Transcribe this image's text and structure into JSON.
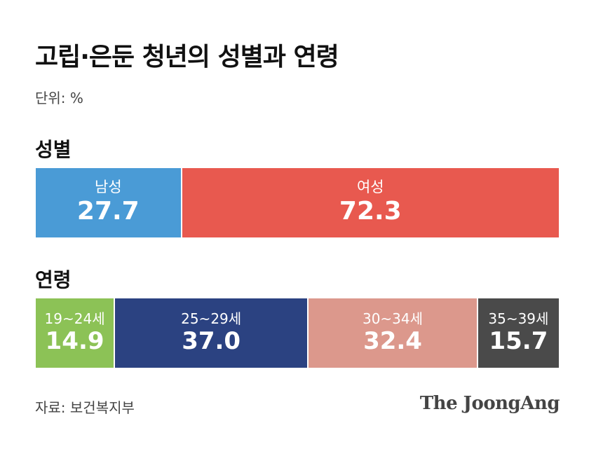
{
  "title": "고립·은둔 청년의 성별과 연령",
  "unit": "단위: %",
  "source": "자료: 보건복지부",
  "logo": "The JoongAng",
  "chart_data": [
    {
      "type": "bar",
      "subtype": "stacked-100",
      "title": "성별",
      "categories": [
        "남성",
        "여성"
      ],
      "values": [
        27.7,
        72.3
      ],
      "value_labels": [
        "27.7",
        "72.3"
      ],
      "colors": [
        "#4a9bd6",
        "#e8594f"
      ]
    },
    {
      "type": "bar",
      "subtype": "stacked-100",
      "title": "연령",
      "categories": [
        "19~24세",
        "25~29세",
        "30~34세",
        "35~39세"
      ],
      "values": [
        14.9,
        37.0,
        32.4,
        15.7
      ],
      "value_labels": [
        "14.9",
        "37.0",
        "32.4",
        "15.7"
      ],
      "colors": [
        "#8cc256",
        "#2b4281",
        "#dc988c",
        "#4a4a4a"
      ]
    }
  ]
}
